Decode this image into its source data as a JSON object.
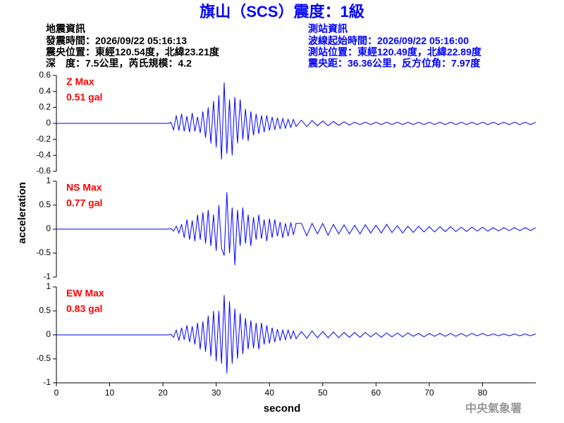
{
  "title": "旗山（SCS）震度：1級",
  "info_left": [
    "地震資訊",
    "發震時間：2026/09/22 05:16:13",
    "震央位置：東經120.54度，北緯23.21度",
    "深　度：7.5公里，芮氏規模：4.2"
  ],
  "info_right": [
    "測站資訊",
    "波線起始時間：2026/09/22 05:16:00",
    "測站位置：東經120.49度，北緯22.89度",
    "震央距：36.36公里，反方位角：7.97度"
  ],
  "y_label": "acceleration",
  "x_label": "second",
  "footer": "中央氣象署",
  "chart_data": [
    {
      "type": "line",
      "label": "Z Max",
      "max_label": "0.51 gal",
      "x": [
        0,
        21,
        21.5,
        22,
        22.5,
        23,
        23.5,
        24,
        24.5,
        25,
        25.5,
        26,
        26.5,
        27,
        27.5,
        28,
        28.5,
        29,
        29.5,
        30,
        30.5,
        31,
        31.5,
        32,
        32.5,
        33,
        33.5,
        34,
        34.5,
        35,
        35.5,
        36,
        36.5,
        37,
        37.5,
        38,
        38.5,
        39,
        39.5,
        40,
        40.5,
        41,
        41.5,
        42,
        42.5,
        43,
        43.5,
        44,
        44.5,
        45,
        46,
        47,
        48,
        49,
        50,
        51,
        52,
        53,
        54,
        55,
        56,
        57,
        58,
        59,
        60,
        61,
        62,
        63,
        64,
        65,
        66,
        67,
        68,
        69,
        70,
        71,
        72,
        73,
        74,
        75,
        76,
        77,
        78,
        79,
        80,
        81,
        82,
        83,
        84,
        85,
        86,
        87,
        88,
        89,
        90
      ],
      "series": [
        {
          "color": "#0000ff",
          "values": [
            0,
            0,
            0.01,
            -0.08,
            0.1,
            -0.09,
            0.12,
            -0.1,
            0.09,
            -0.11,
            0.13,
            -0.1,
            0.08,
            -0.12,
            0.15,
            -0.18,
            0.2,
            -0.25,
            0.28,
            -0.3,
            0.35,
            -0.45,
            0.51,
            -0.38,
            0.3,
            -0.4,
            0.33,
            -0.25,
            0.3,
            -0.2,
            0.18,
            -0.22,
            0.15,
            -0.15,
            0.12,
            -0.13,
            0.1,
            -0.11,
            0.1,
            -0.09,
            0.08,
            -0.08,
            0.07,
            -0.07,
            0.06,
            -0.06,
            0.05,
            -0.05,
            0.05,
            -0.04,
            0.04,
            -0.04,
            0.035,
            -0.03,
            0.03,
            -0.03,
            0.025,
            -0.025,
            0.02,
            -0.02,
            0.015,
            -0.015,
            0.015,
            -0.015,
            0.015,
            -0.015,
            0.015,
            -0.015,
            0.015,
            -0.015,
            0.015,
            -0.015,
            0.015,
            -0.015,
            0.015,
            -0.015,
            0.015,
            -0.015,
            0.015,
            -0.015,
            0.015,
            -0.015,
            0.015,
            -0.015,
            0.015,
            -0.015,
            0.015,
            -0.015,
            0.015,
            -0.015,
            0.015,
            -0.015,
            0.015,
            -0.015,
            0.015
          ]
        }
      ],
      "xlim": [
        0,
        90
      ],
      "ylim": [
        -0.6,
        0.6
      ],
      "yticks": [
        -0.6,
        -0.4,
        -0.2,
        0,
        0.2,
        0.4,
        0.6
      ]
    },
    {
      "type": "line",
      "label": "NS Max",
      "max_label": "0.77 gal",
      "x": [
        0,
        21,
        21.5,
        22,
        22.5,
        23,
        23.5,
        24,
        24.5,
        25,
        25.5,
        26,
        26.5,
        27,
        27.5,
        28,
        28.5,
        29,
        29.5,
        30,
        30.5,
        31,
        31.5,
        32,
        32.5,
        33,
        33.5,
        34,
        34.5,
        35,
        35.5,
        36,
        36.5,
        37,
        37.5,
        38,
        38.5,
        39,
        39.5,
        40,
        40.5,
        41,
        41.5,
        42,
        42.5,
        43,
        43.5,
        44,
        44.5,
        45,
        46,
        47,
        48,
        49,
        50,
        51,
        52,
        53,
        54,
        55,
        56,
        57,
        58,
        59,
        60,
        61,
        62,
        63,
        64,
        65,
        66,
        67,
        68,
        69,
        70,
        71,
        72,
        73,
        74,
        75,
        76,
        77,
        78,
        79,
        80,
        81,
        82,
        83,
        84,
        85,
        86,
        87,
        88,
        89,
        90
      ],
      "series": [
        {
          "color": "#0000ff",
          "values": [
            0,
            0,
            0.01,
            -0.04,
            0.06,
            -0.08,
            0.1,
            -0.18,
            0.2,
            -0.22,
            0.18,
            -0.25,
            0.3,
            -0.22,
            0.35,
            -0.3,
            0.4,
            -0.35,
            0.3,
            -0.45,
            0.5,
            -0.4,
            -0.55,
            0.77,
            -0.5,
            0.45,
            -0.75,
            0.4,
            -0.35,
            0.45,
            -0.3,
            0.3,
            -0.35,
            0.25,
            -0.22,
            0.3,
            -0.2,
            0.2,
            -0.25,
            0.22,
            -0.18,
            0.2,
            -0.15,
            0.15,
            -0.18,
            0.12,
            -0.15,
            0.14,
            -0.12,
            0.12,
            0.12,
            -0.14,
            0.12,
            -0.1,
            0.12,
            -0.13,
            0.1,
            -0.1,
            0.09,
            -0.1,
            0.08,
            -0.1,
            0.09,
            -0.08,
            0.08,
            -0.08,
            0.1,
            -0.07,
            0.07,
            -0.08,
            0.06,
            -0.07,
            0.06,
            -0.06,
            0.05,
            -0.06,
            0.05,
            -0.05,
            0.05,
            -0.05,
            0.04,
            -0.05,
            0.04,
            -0.04,
            0.04,
            -0.04,
            0.03,
            -0.04,
            0.03,
            -0.03,
            0.03,
            -0.03,
            0.03,
            -0.03,
            0.03
          ]
        }
      ],
      "xlim": [
        0,
        90
      ],
      "ylim": [
        -1,
        1
      ],
      "yticks": [
        -1,
        -0.5,
        0,
        0.5,
        1
      ]
    },
    {
      "type": "line",
      "label": "EW Max",
      "max_label": "0.83 gal",
      "x": [
        0,
        21,
        21.5,
        22,
        22.5,
        23,
        23.5,
        24,
        24.5,
        25,
        25.5,
        26,
        26.5,
        27,
        27.5,
        28,
        28.5,
        29,
        29.5,
        30,
        30.5,
        31,
        31.5,
        32,
        32.5,
        33,
        33.5,
        34,
        34.5,
        35,
        35.5,
        36,
        36.5,
        37,
        37.5,
        38,
        38.5,
        39,
        39.5,
        40,
        40.5,
        41,
        41.5,
        42,
        42.5,
        43,
        43.5,
        44,
        44.5,
        45,
        46,
        47,
        48,
        49,
        50,
        51,
        52,
        53,
        54,
        55,
        56,
        57,
        58,
        59,
        60,
        61,
        62,
        63,
        64,
        65,
        66,
        67,
        68,
        69,
        70,
        71,
        72,
        73,
        74,
        75,
        76,
        77,
        78,
        79,
        80,
        81,
        82,
        83,
        84,
        85,
        86,
        87,
        88,
        89,
        90
      ],
      "series": [
        {
          "color": "#0000ff",
          "values": [
            0,
            0,
            0.01,
            -0.05,
            0.1,
            -0.12,
            0.15,
            -0.1,
            0.2,
            -0.15,
            0.18,
            -0.2,
            0.25,
            -0.3,
            0.28,
            -0.35,
            0.4,
            -0.45,
            0.5,
            -0.55,
            0.5,
            -0.6,
            0.83,
            -0.8,
            0.7,
            -0.6,
            0.55,
            -0.5,
            0.45,
            -0.4,
            0.35,
            -0.3,
            0.3,
            -0.28,
            0.25,
            -0.3,
            0.25,
            -0.2,
            0.2,
            -0.18,
            0.15,
            -0.15,
            0.12,
            -0.12,
            0.1,
            -0.1,
            0.1,
            -0.08,
            0.08,
            -0.08,
            0.07,
            -0.07,
            0.08,
            -0.06,
            0.07,
            -0.06,
            0.06,
            -0.06,
            0.05,
            -0.05,
            0.05,
            -0.05,
            0.05,
            -0.04,
            0.04,
            -0.05,
            0.04,
            -0.04,
            0.04,
            -0.04,
            0.04,
            -0.03,
            0.03,
            -0.04,
            0.03,
            -0.03,
            0.03,
            -0.03,
            0.03,
            -0.03,
            0.03,
            -0.03,
            0.03,
            -0.02,
            0.03,
            -0.02,
            0.02,
            -0.02,
            0.02,
            -0.02,
            0.02,
            -0.02,
            0.02,
            -0.02,
            0.02
          ]
        }
      ],
      "xlim": [
        0,
        90
      ],
      "ylim": [
        -1,
        1
      ],
      "yticks": [
        -1,
        -0.5,
        0,
        0.5,
        1
      ],
      "xticks": [
        0,
        10,
        20,
        30,
        40,
        50,
        60,
        70,
        80
      ]
    }
  ]
}
